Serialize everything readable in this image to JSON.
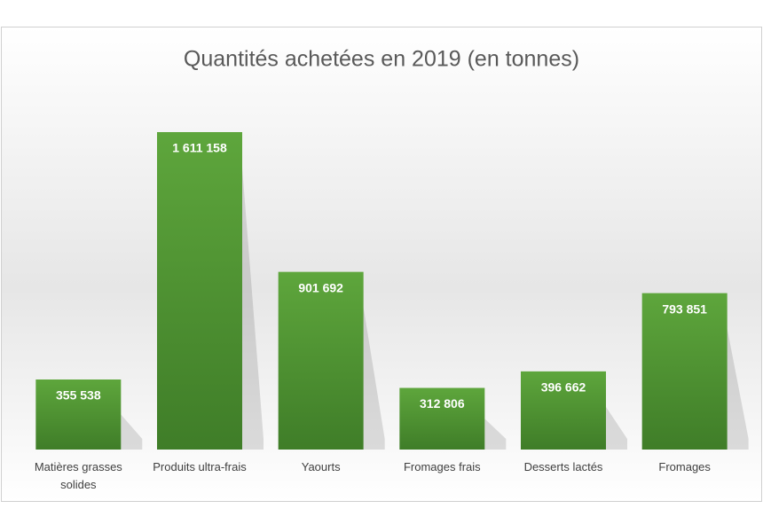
{
  "chart_data": {
    "type": "bar",
    "title": "Quantités achetées en 2019 (en tonnes)",
    "categories": [
      "Matières grasses solides",
      "Produits ultra-frais",
      "Yaourts",
      "Fromages frais",
      "Desserts lactés",
      "Fromages"
    ],
    "values": [
      355538,
      1611158,
      901692,
      312806,
      396662,
      793851
    ],
    "value_labels": [
      "355 538",
      "1 611 158",
      "901 692",
      "312 806",
      "396 662",
      "793 851"
    ],
    "color": "#4e9532"
  }
}
